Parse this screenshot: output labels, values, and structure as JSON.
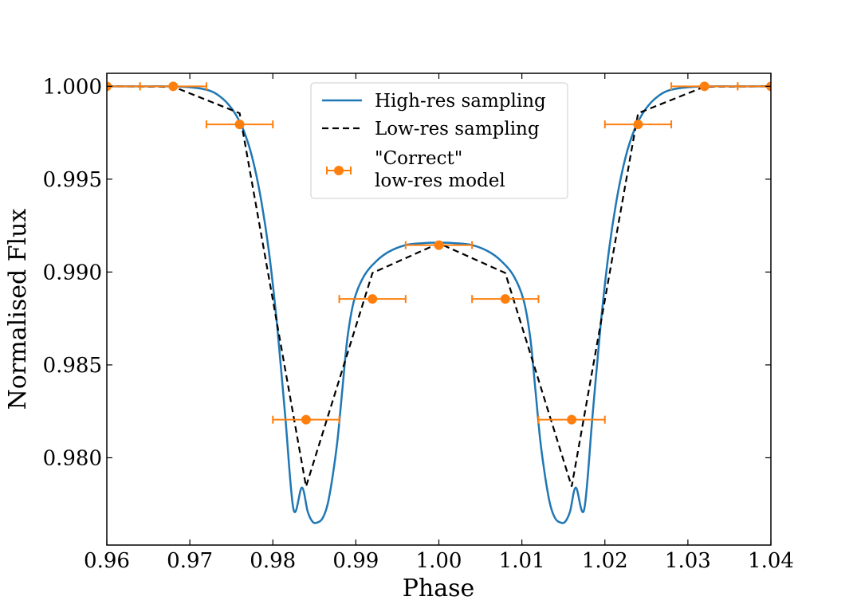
{
  "chart_data": {
    "type": "line",
    "title": "",
    "xlabel": "Phase",
    "ylabel": "Normalised Flux",
    "xlim": [
      0.96,
      1.04
    ],
    "ylim": [
      0.9753,
      1.0007
    ],
    "xticks": [
      "0.96",
      "0.97",
      "0.98",
      "0.99",
      "1.00",
      "1.01",
      "1.02",
      "1.03",
      "1.04"
    ],
    "yticks": [
      "0.980",
      "0.985",
      "0.990",
      "0.995",
      "1.000"
    ],
    "grid": false,
    "legend_position": "top-center",
    "colors": {
      "high_res": "#1f77b4",
      "low_res": "#000000",
      "correct": "#ff7f0e"
    },
    "series": [
      {
        "name": "High-res sampling",
        "style": "solid",
        "color": "#1f77b4",
        "x": [
          0.96,
          0.9625,
          0.965,
          0.967,
          0.969,
          0.971,
          0.9725,
          0.9735,
          0.9745,
          0.9755,
          0.9765,
          0.9775,
          0.9785,
          0.9795,
          0.9805,
          0.9815,
          0.9825,
          0.9835,
          0.9842,
          0.9848,
          0.9854,
          0.986,
          0.9866,
          0.9872,
          0.9878,
          0.9884,
          0.989,
          0.9898,
          0.991,
          0.9925,
          0.994,
          0.996,
          0.998,
          1.0,
          1.002,
          1.004,
          1.006,
          1.0075,
          1.009,
          1.0102,
          1.011,
          1.0116,
          1.0122,
          1.0128,
          1.0134,
          1.014,
          1.0146,
          1.0152,
          1.0158,
          1.0165,
          1.0175,
          1.0185,
          1.0195,
          1.0205,
          1.0215,
          1.0225,
          1.0235,
          1.0245,
          1.0255,
          1.0265,
          1.0275,
          1.029,
          1.031,
          1.033,
          1.035,
          1.0375,
          1.04
        ],
        "y": [
          1.0,
          1.0,
          1.0,
          1.0,
          0.99998,
          0.9999,
          0.99975,
          0.9995,
          0.9991,
          0.9985,
          0.9976,
          0.9962,
          0.9941,
          0.9912,
          0.9872,
          0.9822,
          0.9772,
          0.9784,
          0.9771,
          0.97655,
          0.97652,
          0.97675,
          0.9775,
          0.979,
          0.981,
          0.9838,
          0.9865,
          0.9885,
          0.9898,
          0.9906,
          0.9911,
          0.99145,
          0.99155,
          0.99158,
          0.99155,
          0.99145,
          0.9911,
          0.9906,
          0.9898,
          0.9885,
          0.9865,
          0.9838,
          0.981,
          0.979,
          0.9775,
          0.97675,
          0.97652,
          0.97655,
          0.9771,
          0.9784,
          0.9772,
          0.9822,
          0.9872,
          0.9912,
          0.9941,
          0.9962,
          0.9976,
          0.9985,
          0.9991,
          0.9995,
          0.99975,
          0.9999,
          0.99998,
          1.0,
          1.0,
          1.0,
          1.0
        ]
      },
      {
        "name": "Low-res sampling",
        "style": "dashed",
        "color": "#000000",
        "x": [
          0.96,
          0.968,
          0.976,
          0.984,
          0.992,
          1.0,
          1.008,
          1.016,
          1.024,
          1.032,
          1.04
        ],
        "y": [
          1.0,
          0.99998,
          0.99855,
          0.97845,
          0.98995,
          0.99155,
          0.98995,
          0.97845,
          0.99855,
          0.99998,
          1.0
        ]
      },
      {
        "name": "\"Correct\"\nlow-res model",
        "legend_lines": [
          "\"Correct\"",
          "low-res model"
        ],
        "style": "errorbar",
        "color": "#ff7f0e",
        "x": [
          0.96,
          0.968,
          0.976,
          0.984,
          0.992,
          1.0,
          1.008,
          1.016,
          1.024,
          1.032,
          1.04
        ],
        "y": [
          1.0,
          1.0,
          0.99795,
          0.98205,
          0.98855,
          0.99145,
          0.98855,
          0.98205,
          0.99795,
          1.0,
          1.0
        ],
        "xerr": 0.004
      }
    ]
  }
}
